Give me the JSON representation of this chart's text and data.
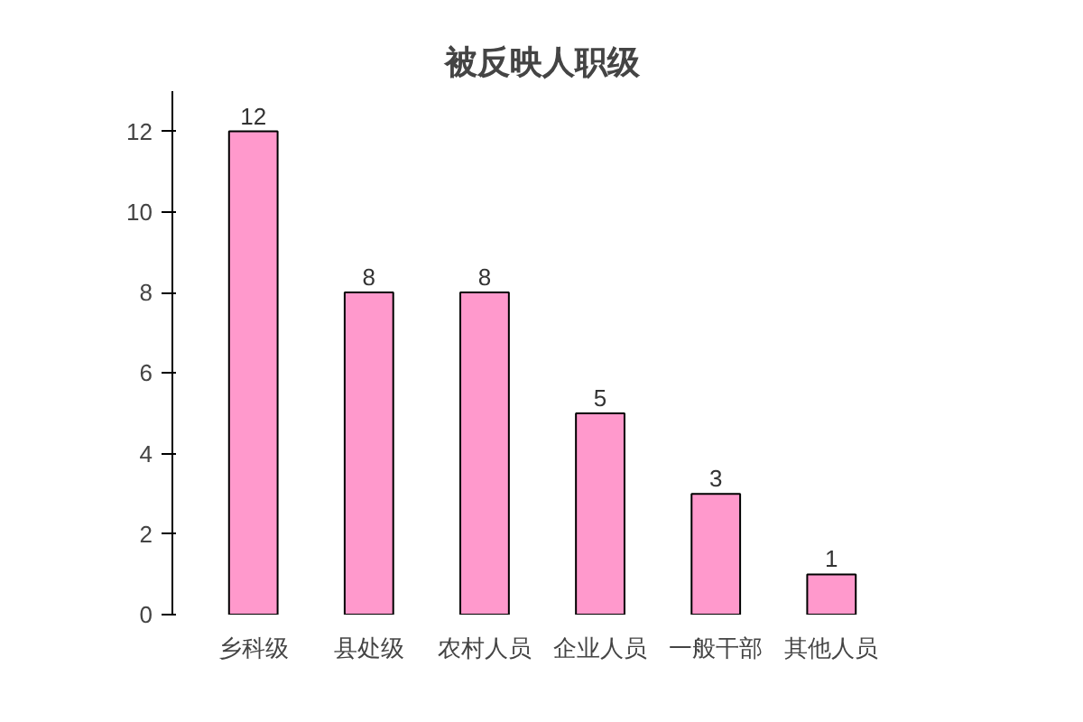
{
  "chart_data": {
    "type": "bar",
    "title": "被反映人职级",
    "categories": [
      "乡科级",
      "县处级",
      "农村人员",
      "企业人员",
      "一般干部",
      "其他人员"
    ],
    "values": [
      12,
      8,
      8,
      5,
      3,
      1
    ],
    "color": "#ff99cc",
    "ylim": [
      0,
      13
    ],
    "yticks": [
      0,
      2,
      4,
      6,
      8,
      10,
      12
    ],
    "grid": false,
    "data_labels": true
  }
}
